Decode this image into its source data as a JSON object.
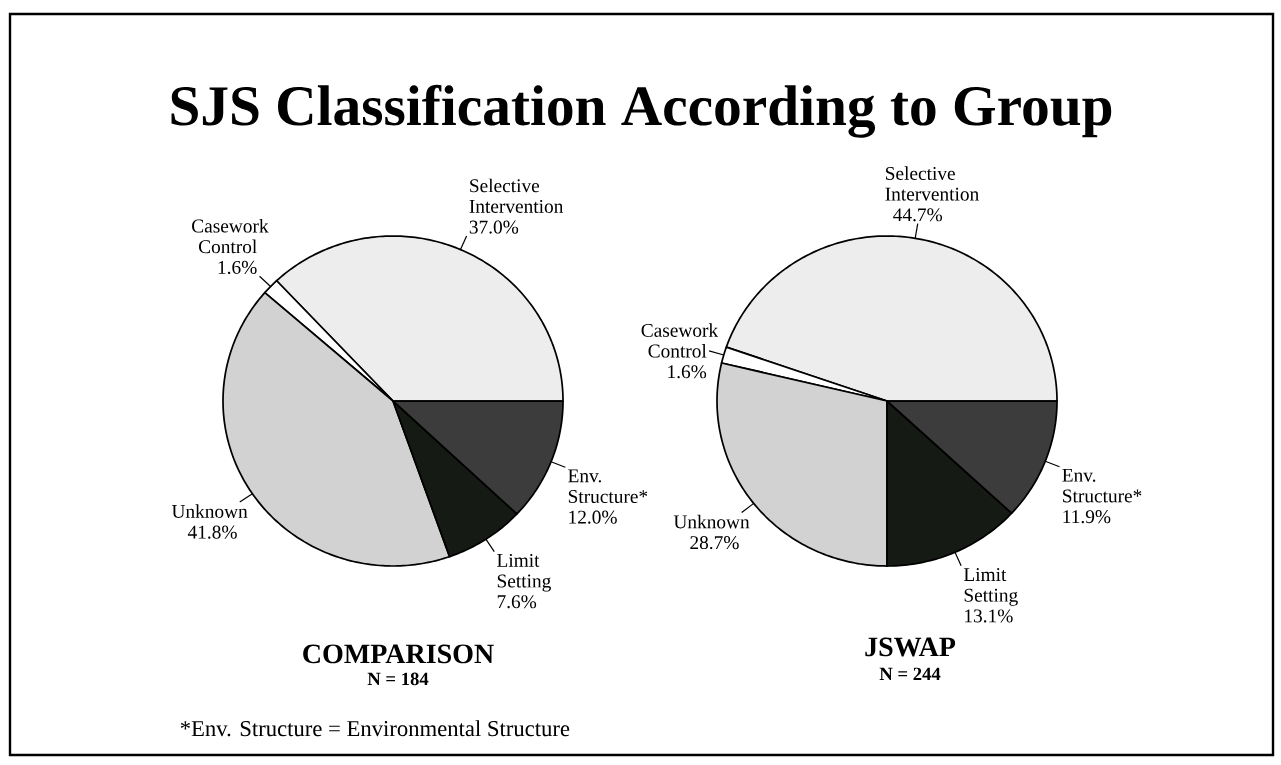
{
  "chart_data": [
    {
      "type": "pie",
      "title": "COMPARISON",
      "subtitle": "N = 184",
      "categories": [
        "Selective Intervention",
        "Casework Control",
        "Unknown",
        "Limit Setting",
        "Env. Structure*"
      ],
      "values": [
        37.0,
        1.6,
        41.8,
        7.6,
        12.0
      ],
      "value_labels": [
        "37.0%",
        "1.6%",
        "41.8%",
        "7.6%",
        "12.0%"
      ],
      "colors": [
        "#ededed",
        "#ffffff",
        "#d2d2d2",
        "#161a14",
        "#3c3c3c"
      ],
      "annotations": [
        "SJS Classification According to Group",
        "*Env. Structure = Environmental Structure"
      ]
    },
    {
      "type": "pie",
      "title": "JSWAP",
      "subtitle": "N = 244",
      "categories": [
        "Selective Intervention",
        "Casework Control",
        "Unknown",
        "Limit Setting",
        "Env. Structure*"
      ],
      "values": [
        44.7,
        1.6,
        28.7,
        13.1,
        11.9
      ],
      "value_labels": [
        "44.7%",
        "1.6%",
        "28.7%",
        "13.1%",
        "11.9%"
      ],
      "colors": [
        "#ededed",
        "#ffffff",
        "#d2d2d2",
        "#161a14",
        "#3c3c3c"
      ]
    }
  ]
}
